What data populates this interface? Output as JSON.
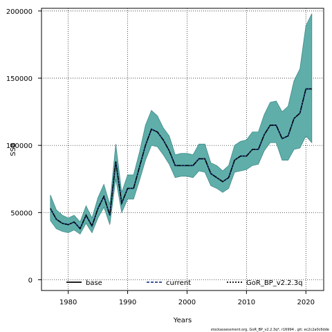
{
  "chart_data": {
    "type": "area",
    "title": "",
    "xlabel": "Years",
    "ylabel": "SSB",
    "xlim": [
      1975.5,
      2023
    ],
    "ylim": [
      -8000,
      202000
    ],
    "x_ticks": [
      1980,
      1990,
      2000,
      2010,
      2020
    ],
    "y_ticks": [
      0,
      50000,
      100000,
      150000,
      200000
    ],
    "grid": true,
    "legend_placement": "bottom",
    "x": [
      1977,
      1978,
      1979,
      1980,
      1981,
      1982,
      1983,
      1984,
      1985,
      1986,
      1987,
      1988,
      1989,
      1990,
      1991,
      1992,
      1993,
      1994,
      1995,
      1996,
      1997,
      1998,
      1999,
      2000,
      2001,
      2002,
      2003,
      2004,
      2005,
      2006,
      2007,
      2008,
      2009,
      2010,
      2011,
      2012,
      2013,
      2014,
      2015,
      2016,
      2017,
      2018,
      2019,
      2020,
      2021
    ],
    "series": [
      {
        "name": "base",
        "style": "solid",
        "color": "#000000",
        "values": [
          53000,
          45000,
          42000,
          41000,
          43000,
          38000,
          48000,
          40000,
          53000,
          62000,
          48000,
          88000,
          57000,
          68000,
          68000,
          84000,
          100000,
          112000,
          110000,
          104000,
          96000,
          85000,
          85000,
          85000,
          85000,
          90000,
          90000,
          79000,
          76000,
          73000,
          76000,
          89000,
          92000,
          92000,
          97000,
          97000,
          108000,
          115000,
          115000,
          105000,
          107000,
          120000,
          124000,
          142000,
          142000
        ]
      },
      {
        "name": "current",
        "style": "dashed",
        "color": "#1f3f8f",
        "values": [
          53000,
          45000,
          42000,
          41000,
          43000,
          38000,
          48000,
          40000,
          53000,
          62000,
          48000,
          88000,
          57000,
          68000,
          68000,
          84000,
          100000,
          112000,
          110000,
          104000,
          96000,
          85000,
          85000,
          85000,
          85000,
          90000,
          90000,
          79000,
          76000,
          73000,
          76000,
          89000,
          92000,
          92000,
          97000,
          97000,
          108000,
          115000,
          115000,
          105000,
          107000,
          120000,
          124000,
          142000,
          142000
        ]
      },
      {
        "name": "GoR_BP_v2.2.3q",
        "style": "dotted",
        "color": "#000000",
        "values": [
          53000,
          45000,
          42000,
          41000,
          43000,
          38000,
          48000,
          40000,
          53000,
          62000,
          48000,
          88000,
          57000,
          68000,
          68000,
          84000,
          100000,
          112000,
          110000,
          104000,
          96000,
          85000,
          85000,
          85000,
          85000,
          90000,
          90000,
          79000,
          76000,
          73000,
          76000,
          89000,
          92000,
          92000,
          97000,
          97000,
          108000,
          115000,
          115000,
          105000,
          107000,
          120000,
          124000,
          142000,
          142000
        ],
        "band_lower": [
          44000,
          38000,
          36000,
          35000,
          37000,
          34000,
          42000,
          35000,
          46000,
          54000,
          41000,
          75000,
          50000,
          60000,
          60000,
          74000,
          89000,
          100000,
          99000,
          93000,
          86000,
          76000,
          77000,
          77000,
          76000,
          81000,
          80000,
          70000,
          68000,
          65000,
          68000,
          80000,
          81000,
          82000,
          85000,
          86000,
          96000,
          102000,
          102000,
          89000,
          89000,
          97000,
          98000,
          107000,
          102000
        ],
        "band_upper": [
          63000,
          52000,
          48000,
          46000,
          48000,
          43000,
          55000,
          46000,
          61000,
          71000,
          56000,
          101000,
          65000,
          78000,
          78000,
          95000,
          115000,
          126000,
          122000,
          113000,
          107000,
          93000,
          94000,
          94000,
          93000,
          101000,
          101000,
          87000,
          85000,
          81000,
          85000,
          100000,
          103000,
          104000,
          110000,
          110000,
          123000,
          132000,
          133000,
          125000,
          129000,
          148000,
          157000,
          189000,
          198000
        ],
        "band_color": "#60aeaa"
      }
    ]
  },
  "legend": {
    "items": [
      "base",
      "current",
      "GoR_BP_v2.2.3q"
    ]
  },
  "footer_text": "stockassessment.org, GoR_BP_v2.2.3q*, r16994 , git: ec2c2a0c6dde"
}
